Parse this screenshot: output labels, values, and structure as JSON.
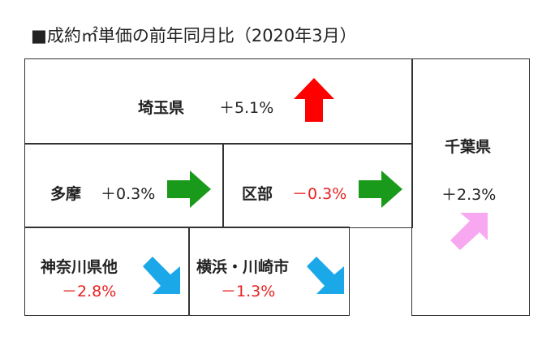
{
  "title": "■成約㎡単価の前年同月比（2020年3月）",
  "regions": [
    {
      "name": "埼玉県",
      "change": "＋5.1%"
    },
    {
      "name": "千葉県",
      "change": "＋2.3%"
    },
    {
      "name": "多摩",
      "change": "＋0.3%"
    },
    {
      "name": "区部",
      "change": "－0.3%"
    },
    {
      "name": "神奈川県他",
      "change": "－2.8%"
    },
    {
      "name": "横浜・川崎市",
      "change": "－1.3%"
    }
  ]
}
